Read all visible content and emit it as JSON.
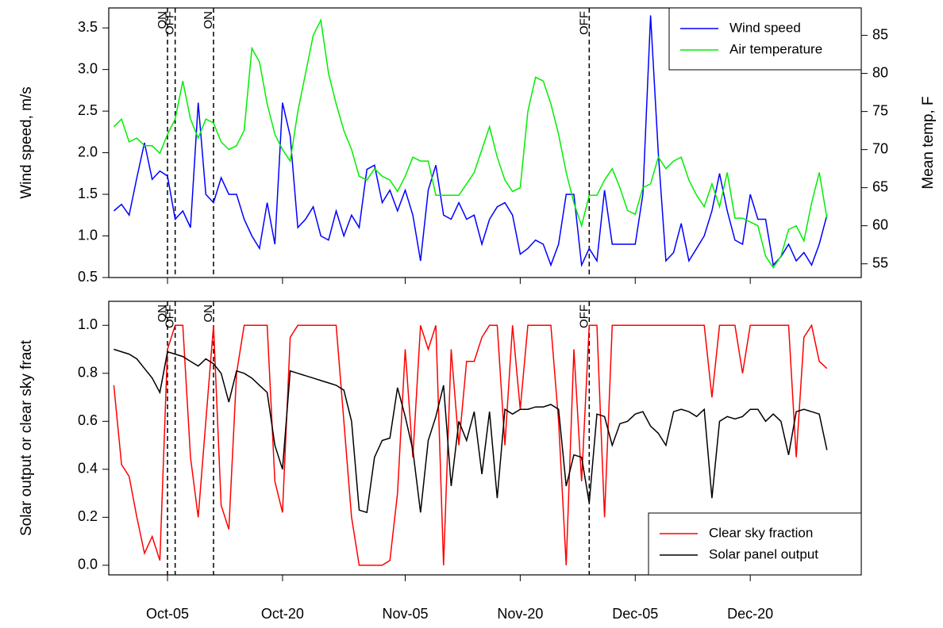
{
  "chart_data": [
    {
      "type": "line",
      "ylabel": "Wind speed, m/s",
      "y2label": "Mean temp, F",
      "ylim": [
        0.5,
        3.74
      ],
      "yticks": [
        0.5,
        {
          "value": 1,
          "label": "1.0"
        },
        1.5,
        {
          "value": 2,
          "label": "2.0"
        },
        2.5,
        {
          "value": 3,
          "label": "3.0"
        },
        3.5
      ],
      "y2lim": [
        53.2,
        88.6
      ],
      "y2ticks": [
        55,
        60,
        65,
        70,
        75,
        80,
        85
      ],
      "legend": "top-right",
      "annotations": [
        {
          "text": "ON",
          "x": 7
        },
        {
          "text": "OFF",
          "x": 8
        },
        {
          "text": "ON",
          "x": 13
        },
        {
          "text": "OFF",
          "x": 62
        }
      ],
      "series": [
        {
          "name": "Wind speed",
          "color": "#0000ff",
          "values": [
            1.3,
            1.38,
            1.25,
            1.7,
            2.12,
            1.68,
            1.78,
            1.72,
            1.2,
            1.3,
            1.1,
            2.6,
            1.5,
            1.4,
            1.7,
            1.5,
            1.5,
            1.2,
            1.0,
            0.85,
            1.4,
            0.9,
            2.6,
            2.2,
            1.1,
            1.2,
            1.35,
            1.0,
            0.95,
            1.3,
            1.0,
            1.25,
            1.1,
            1.8,
            1.85,
            1.4,
            1.55,
            1.3,
            1.55,
            1.25,
            0.7,
            1.55,
            1.85,
            1.25,
            1.2,
            1.4,
            1.2,
            1.25,
            0.9,
            1.2,
            1.35,
            1.4,
            1.25,
            0.78,
            0.85,
            0.95,
            0.9,
            0.65,
            0.9,
            1.5,
            1.5,
            0.65,
            0.85,
            0.7,
            1.55,
            0.9,
            0.9,
            0.9,
            0.9,
            1.5,
            3.65,
            2.0,
            0.7,
            0.8,
            1.15,
            0.7,
            0.85,
            1.0,
            1.3,
            1.75,
            1.3,
            0.95,
            0.9,
            1.5,
            1.2,
            1.2,
            0.65,
            0.75,
            0.9,
            0.7,
            0.8,
            0.65,
            0.9,
            1.25
          ]
        },
        {
          "name": "Air temperature",
          "color": "#00ee00",
          "axis": "y2",
          "values": [
            73,
            74,
            71,
            71.5,
            70.5,
            70.5,
            69.5,
            72,
            74,
            79,
            74,
            71.5,
            74,
            73.5,
            71,
            70,
            70.5,
            72.5,
            83.3,
            81.5,
            76,
            72,
            70,
            68.5,
            75,
            80,
            85,
            87,
            80,
            76,
            72.5,
            70,
            66.5,
            66,
            67.5,
            66.5,
            66,
            64.5,
            66.5,
            69,
            68.5,
            68.5,
            64,
            64,
            64,
            64,
            65.5,
            67,
            70,
            73,
            69,
            66,
            64.5,
            65,
            75,
            79.5,
            79,
            76,
            72,
            67,
            63,
            60,
            64,
            64,
            66,
            67.5,
            65,
            62,
            61.5,
            65,
            65.5,
            69,
            67.5,
            68.5,
            69,
            66,
            64,
            62.5,
            65.5,
            62.5,
            67,
            61,
            61,
            60.5,
            60,
            56,
            54.5,
            56,
            59.5,
            60,
            58,
            63,
            67,
            61
          ]
        }
      ]
    },
    {
      "type": "line",
      "ylabel": "Solar output or clear sky fract",
      "ylim": [
        -0.04,
        1.1
      ],
      "yticks": [
        {
          "value": 0,
          "label": "0.0"
        },
        0.2,
        0.4,
        0.6,
        0.8,
        {
          "value": 1,
          "label": "1.0"
        }
      ],
      "legend": "bottom-right",
      "categories": [
        null,
        null,
        null,
        null,
        null,
        null,
        null,
        "Oct-05",
        null,
        null,
        null,
        null,
        null,
        null,
        null,
        null,
        null,
        null,
        null,
        null,
        null,
        null,
        "Oct-20",
        null,
        null,
        null,
        null,
        null,
        null,
        null,
        null,
        null,
        null,
        null,
        null,
        null,
        null,
        null,
        "Nov-05",
        null,
        null,
        null,
        null,
        null,
        null,
        null,
        null,
        null,
        null,
        null,
        null,
        null,
        null,
        "Nov-20",
        null,
        null,
        null,
        null,
        null,
        null,
        null,
        null,
        null,
        null,
        null,
        null,
        null,
        null,
        "Dec-05",
        null,
        null,
        null,
        null,
        null,
        null,
        null,
        null,
        null,
        null,
        null,
        null,
        null,
        null,
        "Dec-20",
        null,
        null,
        null,
        null,
        null,
        null,
        null,
        null,
        null,
        null
      ],
      "annotations": [
        {
          "text": "ON",
          "x": 7
        },
        {
          "text": "OFF",
          "x": 8
        },
        {
          "text": "ON",
          "x": 13
        },
        {
          "text": "OFF",
          "x": 62
        }
      ],
      "series": [
        {
          "name": "Clear sky fraction",
          "color": "#ff0000",
          "values": [
            0.75,
            0.42,
            0.37,
            0.2,
            0.05,
            0.12,
            0.02,
            0.9,
            1.0,
            1.0,
            0.45,
            0.2,
            0.6,
            1.0,
            0.25,
            0.15,
            0.8,
            1.0,
            1.0,
            1.0,
            1.0,
            0.35,
            0.22,
            0.95,
            1.0,
            1.0,
            1.0,
            1.0,
            1.0,
            1.0,
            0.6,
            0.2,
            0.0,
            0.0,
            0.0,
            0.0,
            0.02,
            0.3,
            0.9,
            0.45,
            1.0,
            0.9,
            1.0,
            0.0,
            0.9,
            0.5,
            0.85,
            0.85,
            0.95,
            1.0,
            1.0,
            0.5,
            1.0,
            0.65,
            1.0,
            1.0,
            1.0,
            1.0,
            0.6,
            0.0,
            0.9,
            0.35,
            1.0,
            1.0,
            0.2,
            1.0,
            1.0,
            1.0,
            1.0,
            1.0,
            1.0,
            1.0,
            1.0,
            1.0,
            1.0,
            1.0,
            1.0,
            1.0,
            0.7,
            1.0,
            1.0,
            1.0,
            0.8,
            1.0,
            1.0,
            1.0,
            1.0,
            1.0,
            1.0,
            0.45,
            0.95,
            1.0,
            0.85,
            0.82
          ]
        },
        {
          "name": "Solar panel output",
          "color": "#000000",
          "values": [
            0.9,
            0.89,
            0.88,
            0.86,
            0.82,
            0.78,
            0.72,
            0.89,
            0.88,
            0.87,
            0.85,
            0.83,
            0.86,
            0.84,
            0.8,
            0.68,
            0.81,
            0.8,
            0.78,
            0.75,
            0.72,
            0.5,
            0.4,
            0.81,
            0.8,
            0.79,
            0.78,
            0.77,
            0.76,
            0.75,
            0.73,
            0.6,
            0.23,
            0.22,
            0.45,
            0.52,
            0.53,
            0.74,
            0.62,
            0.48,
            0.22,
            0.52,
            0.62,
            0.75,
            0.33,
            0.6,
            0.52,
            0.64,
            0.38,
            0.64,
            0.28,
            0.65,
            0.63,
            0.65,
            0.65,
            0.66,
            0.66,
            0.67,
            0.65,
            0.33,
            0.46,
            0.45,
            0.26,
            0.63,
            0.62,
            0.5,
            0.59,
            0.6,
            0.63,
            0.64,
            0.58,
            0.55,
            0.5,
            0.64,
            0.65,
            0.64,
            0.62,
            0.65,
            0.28,
            0.6,
            0.62,
            0.61,
            0.62,
            0.65,
            0.65,
            0.6,
            0.63,
            0.6,
            0.46,
            0.64,
            0.65,
            0.64,
            0.63,
            0.48
          ]
        }
      ]
    }
  ]
}
